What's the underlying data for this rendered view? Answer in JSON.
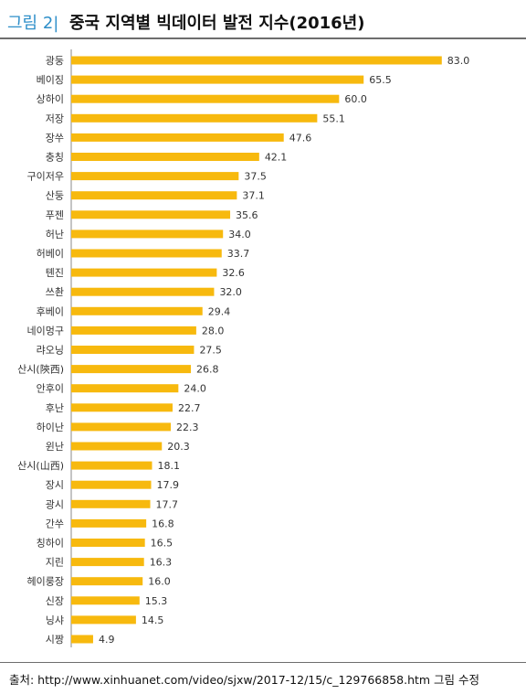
{
  "header": {
    "figure_label": "그림 2|",
    "title": "중국 지역별 빅데이터 발전 지수(2016년)"
  },
  "source": "출처: http://www.xinhuanet.com/video/sjxw/2017-12/15/c_129766858.htm 그림 수정",
  "colors": {
    "bar": "#f7b90e",
    "accent": "#2e8fc9"
  },
  "chart_data": {
    "type": "bar",
    "orientation": "horizontal",
    "title": "중국 지역별 빅데이터 발전 지수(2016년)",
    "xlabel": "",
    "ylabel": "",
    "xlim": [
      0,
      90
    ],
    "grid": false,
    "categories": [
      "광둥",
      "베이징",
      "상하이",
      "저장",
      "장쑤",
      "충칭",
      "구이저우",
      "산둥",
      "푸젠",
      "허난",
      "허베이",
      "톈진",
      "쓰촨",
      "후베이",
      "네이멍구",
      "랴오닝",
      "산시(陝西)",
      "안후이",
      "후난",
      "하이난",
      "윈난",
      "산시(山西)",
      "장시",
      "광시",
      "간쑤",
      "칭하이",
      "지린",
      "헤이룽장",
      "신장",
      "닝샤",
      "시짱"
    ],
    "values": [
      83.0,
      65.5,
      60.0,
      55.1,
      47.6,
      42.1,
      37.5,
      37.1,
      35.6,
      34.0,
      33.7,
      32.6,
      32.0,
      29.4,
      28.0,
      27.5,
      26.8,
      24.0,
      22.7,
      22.3,
      20.3,
      18.1,
      17.9,
      17.7,
      16.8,
      16.5,
      16.3,
      16.0,
      15.3,
      14.5,
      4.9
    ],
    "value_labels": [
      "83.0",
      "65.5",
      "60.0",
      "55.1",
      "47.6",
      "42.1",
      "37.5",
      "37.1",
      "35.6",
      "34.0",
      "33.7",
      "32.6",
      "32.0",
      "29.4",
      "28.0",
      "27.5",
      "26.8",
      "24.0",
      "22.7",
      "22.3",
      "20.3",
      "18.1",
      "17.9",
      "17.7",
      "16.8",
      "16.5",
      "16.3",
      "16.0",
      "15.3",
      "14.5",
      "4.9"
    ]
  }
}
